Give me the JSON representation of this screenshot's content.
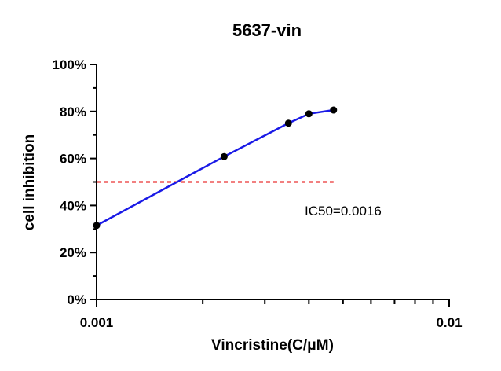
{
  "chart_data": {
    "type": "line",
    "title": "5637-vin",
    "xlabel": "Vincristine(C/μM)",
    "ylabel": "cell inhibition",
    "x_scale": "log",
    "xlim": [
      0.001,
      0.01
    ],
    "ylim": [
      0,
      100
    ],
    "x_tick_labels": [
      "0.001",
      "0.01"
    ],
    "y_tick_labels": [
      "0%",
      "20%",
      "40%",
      "60%",
      "80%",
      "100%"
    ],
    "y_ticks": [
      0,
      20,
      40,
      60,
      80,
      100
    ],
    "grid": false,
    "series": [
      {
        "x": [
          0.001,
          0.0023,
          0.0035,
          0.004,
          0.0047
        ],
        "y": [
          31.5,
          60.8,
          75.0,
          79.0,
          80.6
        ],
        "color": "#1a1ae6",
        "marker_color": "#000000"
      }
    ],
    "reference_line": {
      "y": 50,
      "x_range": [
        0.001,
        0.0047
      ],
      "color": "#e60000",
      "style": "dashed"
    },
    "annotation": "IC50=0.0016"
  }
}
